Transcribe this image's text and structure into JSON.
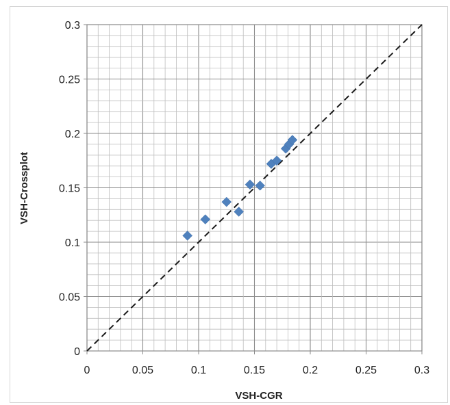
{
  "chart_data": {
    "type": "scatter",
    "xlabel": "VSH-CGR",
    "ylabel": "VSH-Crossplot",
    "xlim": [
      0,
      0.3
    ],
    "ylim": [
      0,
      0.3
    ],
    "x_ticks": [
      "0",
      "0.05",
      "0.1",
      "0.15",
      "0.2",
      "0.25",
      "0.3"
    ],
    "y_ticks": [
      "0",
      "0.05",
      "0.1",
      "0.15",
      "0.2",
      "0.25",
      "0.3"
    ],
    "minor_step": 0.01,
    "major_step": 0.05,
    "grid": true,
    "reference_line": {
      "style": "dashed",
      "from": [
        0,
        0
      ],
      "to": [
        0.3,
        0.3
      ],
      "color": "#1a1a1a"
    },
    "marker": {
      "shape": "diamond",
      "color": "#4f81bd"
    },
    "series": [
      {
        "points": [
          [
            0.09,
            0.106
          ],
          [
            0.106,
            0.121
          ],
          [
            0.125,
            0.137
          ],
          [
            0.136,
            0.128
          ],
          [
            0.146,
            0.153
          ],
          [
            0.155,
            0.152
          ],
          [
            0.165,
            0.172
          ],
          [
            0.17,
            0.175
          ],
          [
            0.178,
            0.186
          ],
          [
            0.181,
            0.19
          ],
          [
            0.184,
            0.194
          ]
        ]
      }
    ]
  }
}
